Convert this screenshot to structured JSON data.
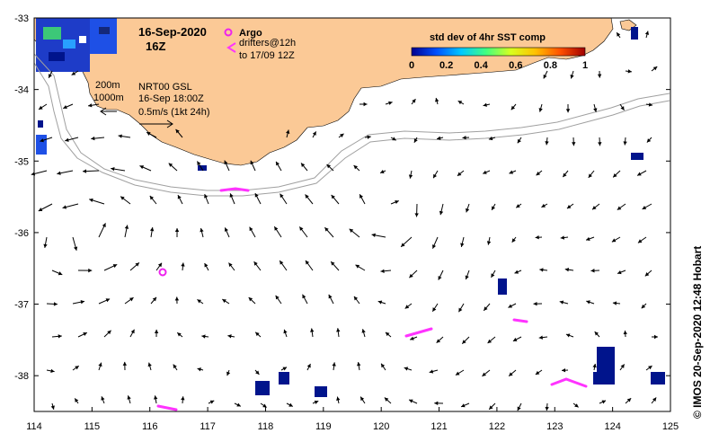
{
  "map": {
    "title_date": "16-Sep-2020",
    "title_hour": "16Z",
    "argo_label": "Argo",
    "drifters_label_1": "drifters@12h",
    "drifters_label_2": "to 17/09 12Z",
    "contour_200": "200m",
    "contour_1000": "1000m",
    "product_line_1": "NRT00 GSL",
    "product_line_2": "16-Sep 18:00Z",
    "vector_scale": "0.5m/s (1kt 24h)",
    "credit": "© IMOS 20-Sep-2020 12:48 Hobart",
    "colors": {
      "land": "#fbc996",
      "argo": "#ee22ee",
      "drifter": "#ff33ff",
      "contour": "#a0a0a0",
      "sst_low": "#00148c",
      "sst_mid": "#1e64ff"
    }
  },
  "colorbar": {
    "title": "std dev of 4hr SST comp",
    "ticks": [
      "0",
      "0.2",
      "0.4",
      "0.6",
      "0.8",
      "1"
    ],
    "colors": [
      "#00008f",
      "#0050ff",
      "#00c8ff",
      "#40ff80",
      "#d8ff20",
      "#ffc000",
      "#ff5000",
      "#a00000"
    ]
  },
  "axes": {
    "x_ticks": [
      "114",
      "115",
      "116",
      "117",
      "118",
      "119",
      "120",
      "121",
      "122",
      "123",
      "124",
      "125"
    ],
    "y_ticks": [
      "-33",
      "-34",
      "-35",
      "-36",
      "-37",
      "-38"
    ],
    "xlim": [
      114,
      125
    ],
    "ylim": [
      -38.5,
      -33
    ]
  }
}
